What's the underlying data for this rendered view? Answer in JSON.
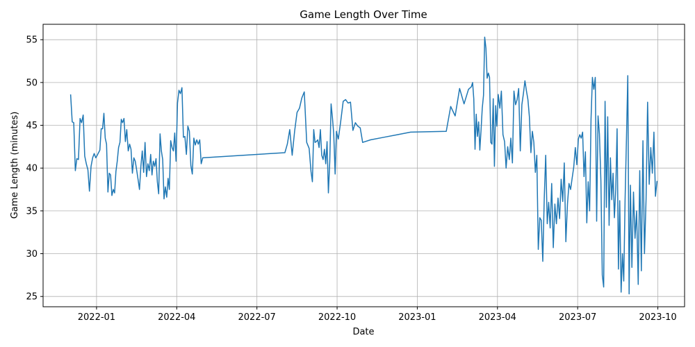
{
  "chart_data": {
    "type": "line",
    "title": "Game Length Over Time",
    "x_label": "Date",
    "y_label": "Game Length (minutes)",
    "grid": true,
    "xlim": [
      "2021-11",
      "2023-10"
    ],
    "ylim": [
      23.8,
      56.8
    ],
    "xticks": [
      "2022-01",
      "2022-04",
      "2022-07",
      "2022-10",
      "2023-01",
      "2023-04",
      "2023-07",
      "2023-10"
    ],
    "yticks": [
      25,
      30,
      35,
      40,
      45,
      50,
      55
    ],
    "series": [
      {
        "name": "Game Length",
        "color": "#1f77b4",
        "x": [],
        "values": []
      }
    ],
    "months": [
      [
        "2021-12",
        [
          48.6,
          45.4,
          45.3,
          39.7,
          41.1,
          41.0,
          45.8,
          45.3,
          46.2,
          41.4,
          40.5,
          39.8,
          37.3,
          40.2,
          41.2,
          41.7,
          41.2
        ]
      ],
      [
        "2022-01",
        [
          41.5,
          41.8,
          42.1,
          44.6,
          44.6,
          46.4,
          43.5,
          42.8,
          37.2,
          39.4,
          39.2,
          36.8,
          37.5,
          37.1,
          39.6,
          40.8,
          42.4,
          43.0,
          45.7,
          45.3
        ]
      ],
      [
        "2022-02",
        [
          45.8,
          43.1,
          44.5,
          42.0,
          42.8,
          42.2,
          39.4,
          41.2,
          40.8,
          39.8,
          38.7,
          37.5,
          40.2,
          42.0,
          39.5,
          43.0,
          39.0,
          40.5,
          39.7
        ]
      ],
      [
        "2022-03",
        [
          41.6,
          39.2,
          40.8,
          40.2,
          41.1,
          38.4,
          37.0,
          44.0,
          42.0,
          41.0,
          36.4,
          37.8,
          36.6,
          38.8,
          37.5,
          43.2,
          42.4,
          42.0,
          44.1,
          40.8
        ]
      ],
      [
        "2022-04",
        [
          47.6,
          49.1,
          48.7,
          49.4,
          43.6,
          43.7,
          41.6,
          44.9,
          44.3,
          40.3,
          39.3,
          43.5,
          42.7,
          43.3,
          42.8,
          43.3,
          40.5,
          41.2
        ]
      ],
      [
        "2022-08",
        [
          41.8,
          42.8,
          44.5,
          41.5,
          44.3,
          46.5,
          47.0,
          48.2,
          48.9,
          43.0,
          42.3
        ]
      ],
      [
        "2022-09",
        [
          39.6,
          38.4,
          44.5,
          43.0,
          43.1,
          43.3,
          42.4,
          44.5,
          41.5,
          41.0,
          42.2,
          40.5,
          43.1,
          37.1,
          40.8,
          47.5,
          45.9,
          44.0,
          39.3,
          44.3
        ]
      ],
      [
        "2022-10",
        [
          43.4,
          45.5,
          47.8,
          48.0,
          47.6,
          47.7,
          44.4,
          45.3,
          44.9,
          44.7,
          43.0
        ]
      ],
      [
        "2022-11",
        [
          43.3,
          43.6
        ]
      ],
      [
        "2022-12",
        [
          43.9,
          44.2
        ]
      ],
      [
        "2023-02",
        [
          44.3,
          47.2,
          46.1,
          49.3,
          47.5,
          49.2
        ]
      ],
      [
        "2023-03",
        [
          49.5,
          50.0,
          48.1,
          42.2,
          46.3,
          43.7,
          45.4,
          42.1,
          44.5,
          47.0,
          48.5,
          55.3,
          54.0,
          50.5,
          51.1,
          50.6,
          43.0,
          42.8,
          48.1,
          40.2,
          47.3,
          44.9
        ]
      ],
      [
        "2023-04",
        [
          48.6,
          47.0,
          49.0,
          43.9,
          43.1,
          40.0,
          42.5,
          41.0,
          43.5,
          40.6,
          49.0,
          47.4,
          48.0,
          49.3,
          42.0,
          47.4,
          48.7
        ]
      ],
      [
        "2023-05",
        [
          50.2,
          49.0,
          48.0,
          46.0,
          41.8,
          44.3,
          43.0,
          39.5,
          41.5,
          30.5,
          34.2,
          33.9,
          29.1,
          36.5,
          41.5,
          33.5,
          36.0,
          33.0
        ]
      ],
      [
        "2023-06",
        [
          38.2,
          30.7,
          35.8,
          33.5,
          36.5,
          34.1,
          38.7,
          36.1,
          40.6,
          31.4,
          35.8,
          38.2,
          37.5,
          38.8,
          40.1,
          42.4,
          40.4
        ]
      ],
      [
        "2023-07",
        [
          43.4,
          43.9,
          43.5,
          44.2,
          39.0,
          41.9,
          33.6,
          38.4,
          35.0,
          45.7,
          50.6,
          49.2,
          50.6,
          33.8,
          46.1,
          44.0,
          38.5,
          27.5,
          26.1
        ]
      ],
      [
        "2023-08",
        [
          47.8,
          35.4,
          46.0,
          33.3,
          41.2,
          36.3,
          39.4,
          34.2,
          37.5,
          44.6,
          28.2,
          36.2,
          25.5,
          30.0,
          26.8,
          36.3,
          43.5,
          50.8,
          25.3,
          38.0
        ]
      ],
      [
        "2023-09",
        [
          28.4,
          37.2,
          31.8,
          35.0,
          26.4,
          39.7,
          28.0,
          43.2,
          30.0,
          36.4,
          47.7,
          38.1,
          42.4,
          39.4,
          44.2,
          36.7,
          38.5
        ]
      ]
    ]
  }
}
